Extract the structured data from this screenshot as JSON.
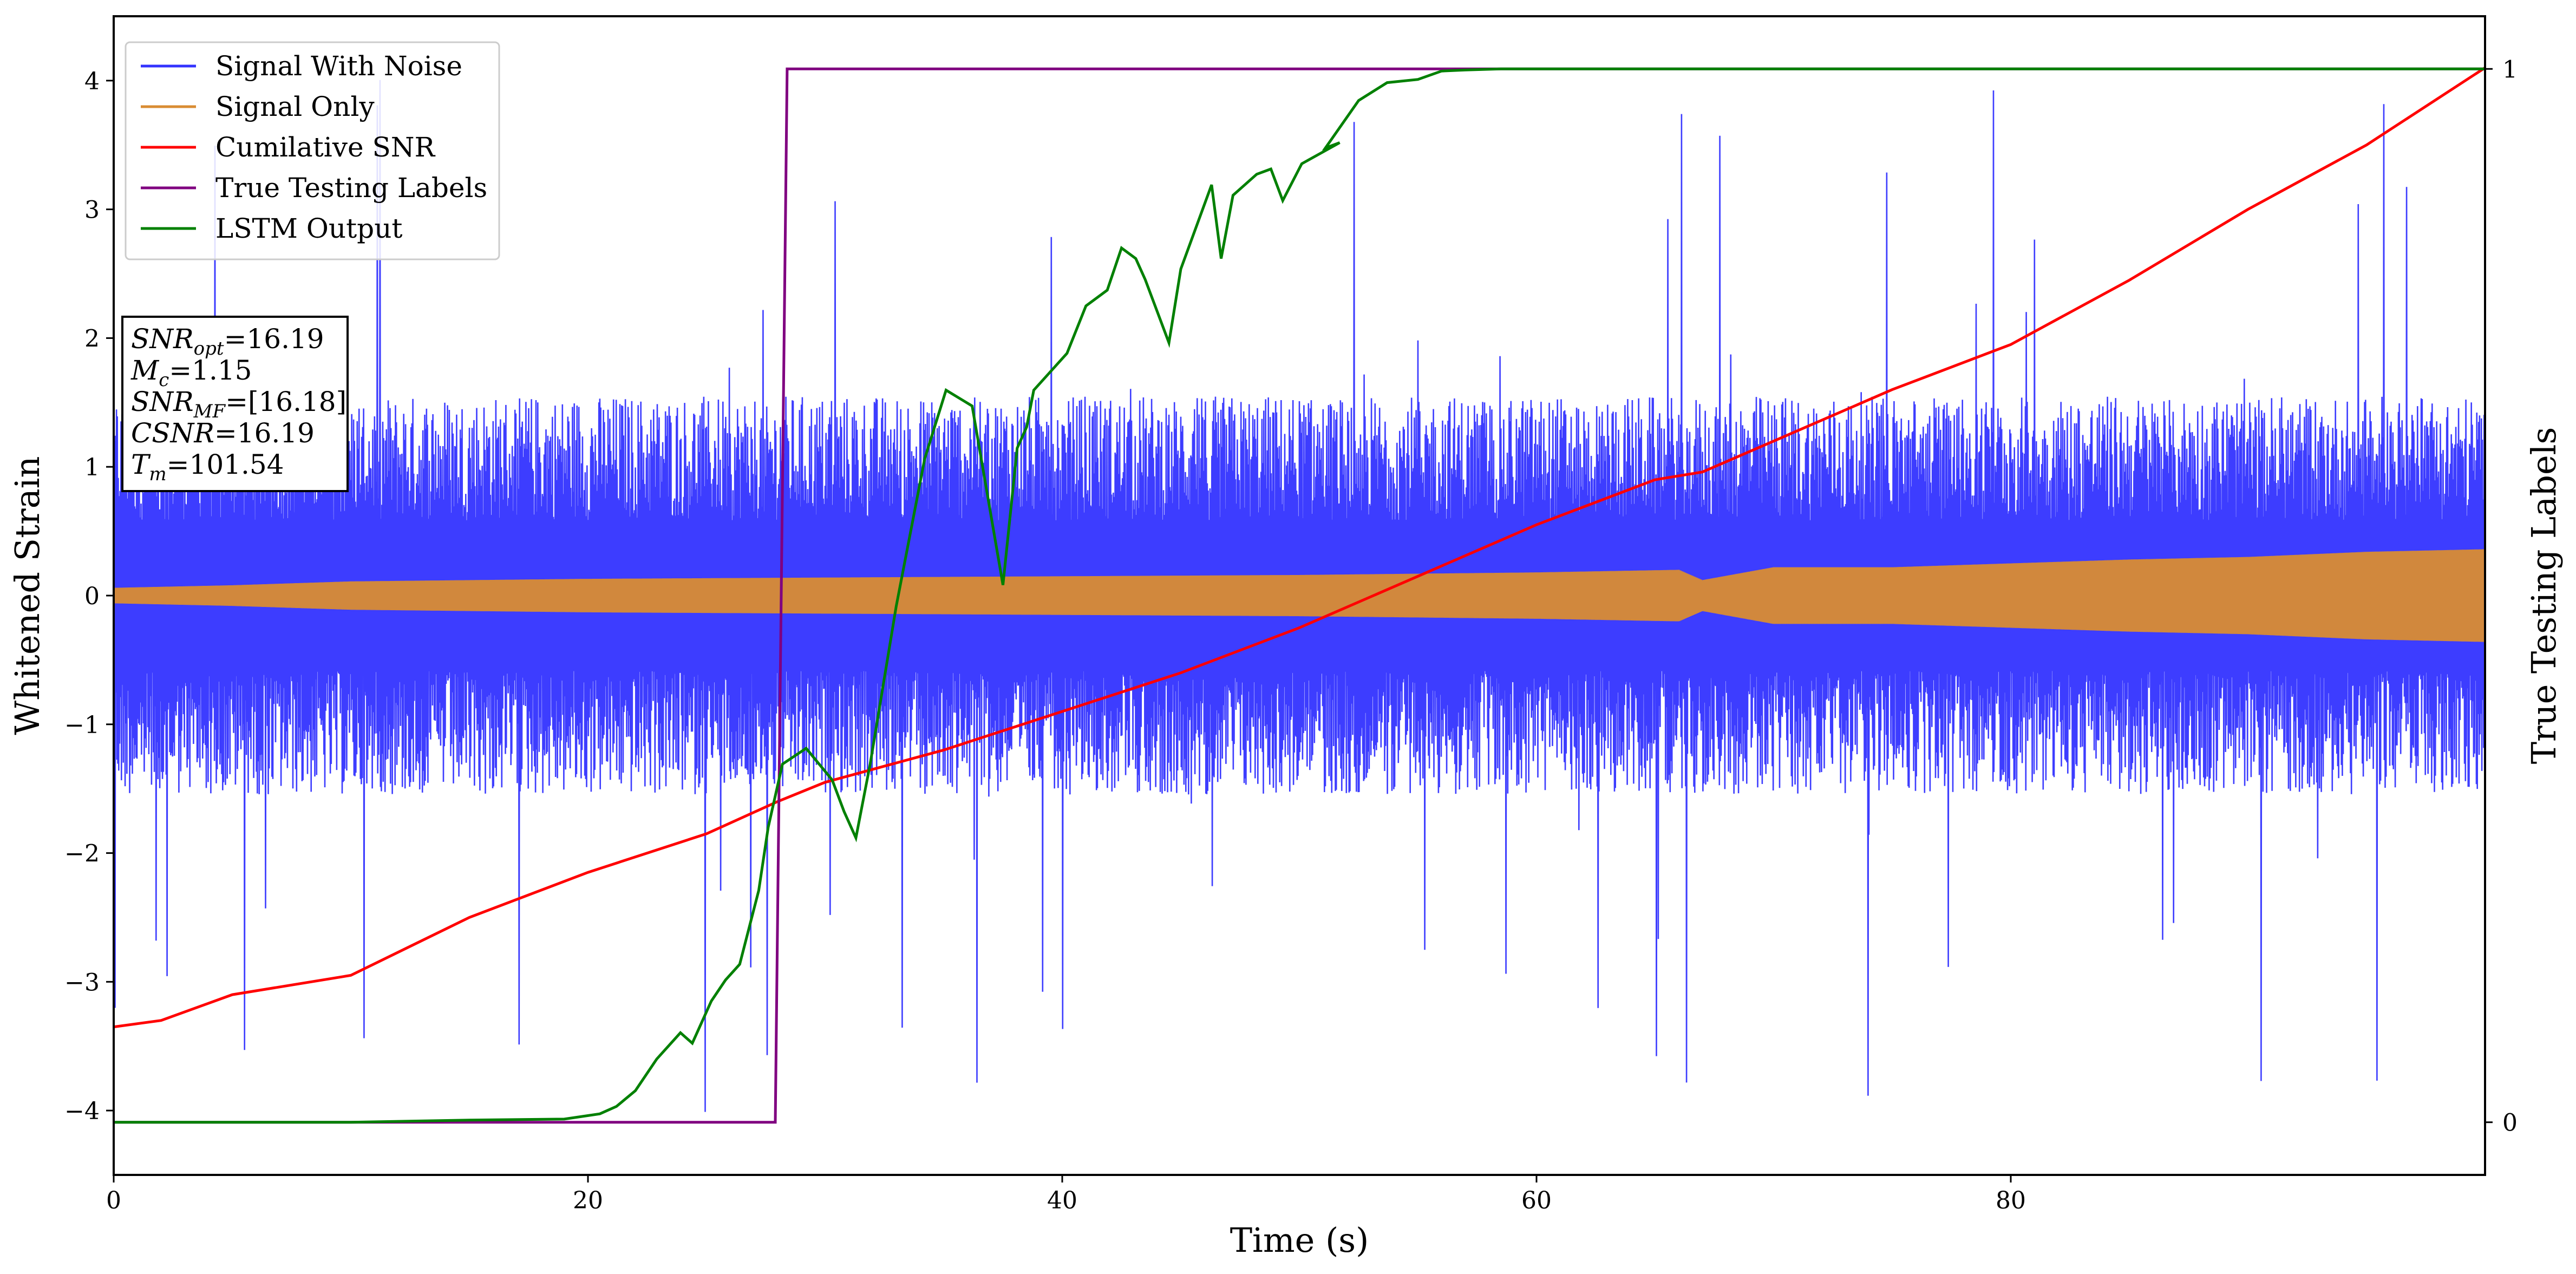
{
  "chart_data": {
    "type": "line",
    "xlabel": "Time (s)",
    "ylabel": "Whitened Strain",
    "y2label": "True Testing Labels",
    "xlim": [
      0,
      100
    ],
    "ylim": [
      -4.5,
      4.5
    ],
    "y2lim": [
      -0.05,
      1.05
    ],
    "x_ticks": [
      0,
      20,
      40,
      60,
      80
    ],
    "y_ticks": [
      -4,
      -3,
      -2,
      -1,
      0,
      1,
      2,
      3,
      4
    ],
    "y2_ticks": [
      0,
      1
    ],
    "grid": false,
    "legend_position": "upper-left",
    "colors": {
      "signal_with_noise": "#3333ff",
      "signal_only": "#d98c33",
      "cumulative_snr": "#ff0000",
      "true_labels": "#800080",
      "lstm_output": "#008000"
    },
    "series": [
      {
        "name": "Signal With Noise",
        "kind": "noise_band",
        "axis": "left",
        "typical_amplitude": 1.3,
        "peak_max": 4.1,
        "peak_min": -4.1
      },
      {
        "name": "Signal Only",
        "kind": "envelope",
        "axis": "left",
        "x": [
          0,
          5,
          10,
          20,
          30,
          40,
          50,
          60,
          66,
          67,
          70,
          75,
          80,
          85,
          90,
          95,
          100
        ],
        "amplitude": [
          0.06,
          0.08,
          0.11,
          0.13,
          0.14,
          0.15,
          0.16,
          0.18,
          0.2,
          0.12,
          0.22,
          0.22,
          0.25,
          0.28,
          0.3,
          0.34,
          0.36
        ]
      },
      {
        "name": "Cumilative SNR",
        "axis": "left",
        "x": [
          0,
          2,
          5,
          10,
          15,
          20,
          25,
          28,
          30,
          35,
          40,
          45,
          50,
          55,
          60,
          65,
          67,
          70,
          75,
          80,
          85,
          90,
          95,
          100
        ],
        "y": [
          -3.35,
          -3.3,
          -3.1,
          -2.95,
          -2.5,
          -2.15,
          -1.85,
          -1.6,
          -1.45,
          -1.2,
          -0.9,
          -0.6,
          -0.25,
          0.15,
          0.55,
          0.9,
          0.96,
          1.2,
          1.6,
          1.95,
          2.45,
          3.0,
          3.5,
          4.1
        ]
      },
      {
        "name": "True Testing Labels",
        "axis": "right",
        "x": [
          0,
          27.9,
          28.4,
          100
        ],
        "y": [
          0,
          0,
          1,
          1
        ]
      },
      {
        "name": "LSTM Output",
        "axis": "right",
        "x": [
          0,
          10,
          15,
          19,
          20.5,
          21.2,
          22,
          22.9,
          23.9,
          24.4,
          25.2,
          25.8,
          26.4,
          27.2,
          27.6,
          28.2,
          29.2,
          30.3,
          30.8,
          31.3,
          31.9,
          33,
          34.2,
          35.1,
          36.2,
          37.5,
          38.1,
          38.5,
          38.8,
          39.4,
          40.2,
          41,
          41.9,
          42.5,
          43.1,
          43.5,
          44.5,
          45,
          46.3,
          46.7,
          47.2,
          48.2,
          48.8,
          49.3,
          50.1,
          51.7,
          51.1,
          52.5,
          53.7,
          55,
          56,
          57,
          58.5,
          61,
          62,
          62.8,
          64,
          70,
          80,
          90,
          100
        ],
        "y": [
          0,
          0.0,
          0.002,
          0.003,
          0.008,
          0.015,
          0.03,
          0.06,
          0.085,
          0.075,
          0.115,
          0.135,
          0.15,
          0.22,
          0.28,
          0.34,
          0.355,
          0.325,
          0.295,
          0.27,
          0.34,
          0.49,
          0.63,
          0.695,
          0.68,
          0.51,
          0.64,
          0.66,
          0.695,
          0.71,
          0.73,
          0.775,
          0.79,
          0.83,
          0.82,
          0.8,
          0.74,
          0.81,
          0.89,
          0.82,
          0.88,
          0.9,
          0.905,
          0.875,
          0.91,
          0.93,
          0.925,
          0.97,
          0.987,
          0.99,
          0.998,
          0.999,
          1.0,
          1.0,
          1.0,
          1.0,
          1.0,
          1.0,
          1.0,
          1.0,
          1.0
        ]
      }
    ],
    "info_box": {
      "lines": [
        {
          "name": "SNR",
          "sub": "opt",
          "value": "=16.19"
        },
        {
          "name": "M",
          "sub": "c",
          "value": "=1.15"
        },
        {
          "name": "SNR",
          "sub": "MF",
          "value": "=[16.18]"
        },
        {
          "name": "CSNR",
          "sub": "",
          "value": "=16.19"
        },
        {
          "name": "T",
          "sub": "m",
          "value": "=101.54"
        }
      ]
    }
  }
}
